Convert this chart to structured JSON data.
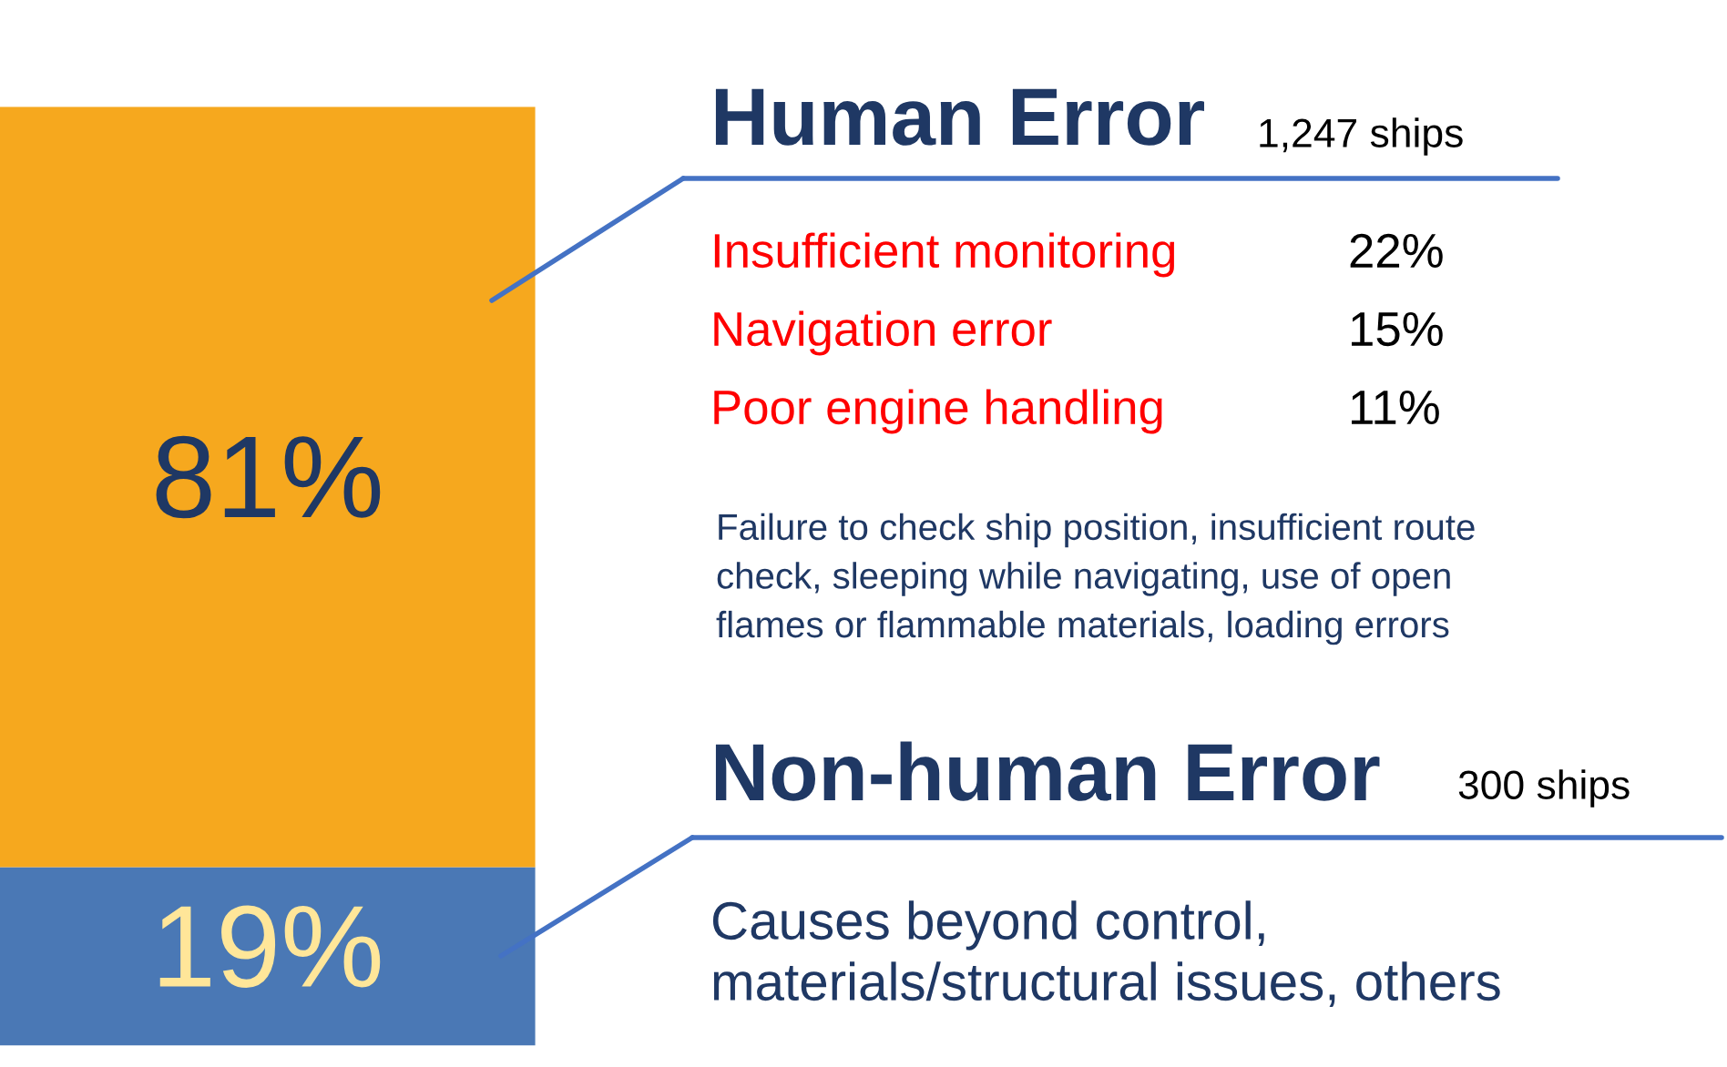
{
  "chart_data": {
    "type": "bar",
    "stacked": true,
    "categories": [
      null
    ],
    "series": [
      {
        "color": "#4a78b5",
        "values": [
          19
        ],
        "value_labels": [
          "19%"
        ]
      },
      {
        "color": "#f6a81e",
        "values": [
          81
        ],
        "value_labels": [
          "81%"
        ]
      }
    ],
    "tick_labels": false,
    "annotations": [
      "Human Error",
      "1,247 ships",
      "Insufficient monitoring",
      "22%",
      "Navigation error",
      "15%",
      "Poor engine handling",
      "11%",
      "Failure to check ship position, insufficient route\ncheck, sleeping while navigating, use of open\nflames or flammable materials, loading errors",
      "Non-human Error",
      "300 ships",
      "Causes beyond control,\nmaterials/structural issues, others"
    ]
  }
}
